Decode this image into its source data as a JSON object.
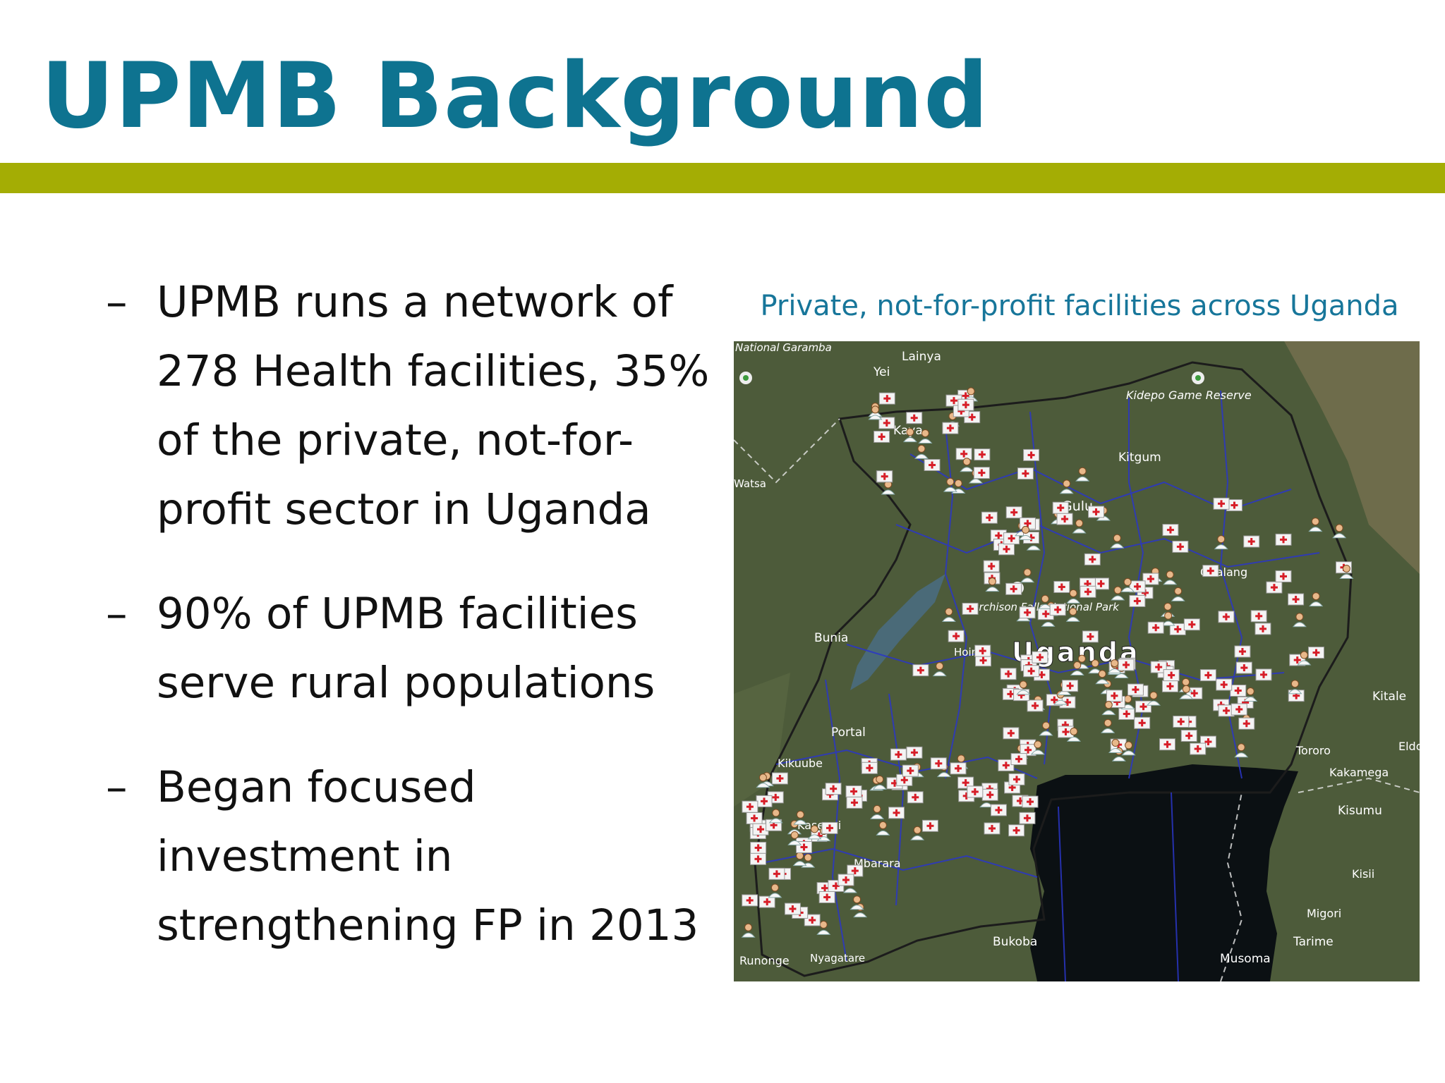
{
  "slide": {
    "title": "UPMB Background",
    "bullets": [
      {
        "dash": "–",
        "text": "UPMB runs a network of 278 Health facilities, 35% of the private, not-for-profit sector in Uganda"
      },
      {
        "dash": "–",
        "text": "90% of UPMB facilities serve rural populations"
      },
      {
        "dash": "–",
        "text": "Began focused investment in strengthening FP in 2013"
      }
    ]
  },
  "map": {
    "caption": "Private, not-for-profit facilities across Uganda",
    "country_label": "Uganda",
    "place_labels": [
      "National Garamba",
      "Lainya",
      "Yei",
      "Kidepo Game Reserve",
      "Kaya",
      "Kitgum",
      "Watsa",
      "Gulu",
      "Obalang",
      "Murchison Falls National Park",
      "Bunia",
      "Hoima",
      "Kitale",
      "Portal",
      "Tororo",
      "Eldoret",
      "Kikuube",
      "Kakamega",
      "Kisumu",
      "Kasenyi",
      "Mbarara",
      "Kisii",
      "Migori",
      "Tarime",
      "Bukoba",
      "Musoma",
      "Runonge",
      "Nyagatare"
    ],
    "colors": {
      "land": "#4d5b3a",
      "lake": "#0b1013",
      "boundaries": "#2a36c8",
      "hospital_marker": "#d71e28"
    },
    "icons": [
      "hospital-marker-icon",
      "doctor-marker-icon",
      "park-marker-icon"
    ]
  }
}
